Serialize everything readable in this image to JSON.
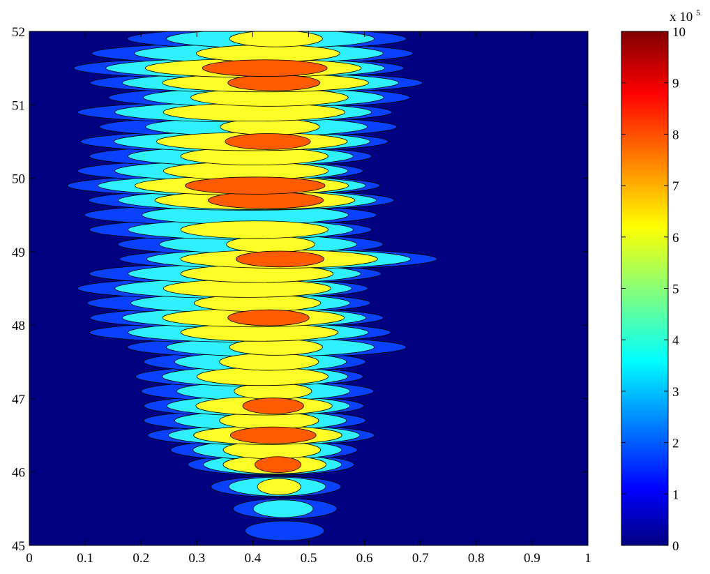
{
  "chart_data": {
    "type": "heatmap",
    "style": "filled-contour",
    "title": "",
    "xlabel": "",
    "ylabel": "",
    "xlim": [
      0,
      1
    ],
    "ylim": [
      45,
      52
    ],
    "x_ticks": [
      0,
      0.1,
      0.2,
      0.3,
      0.4,
      0.5,
      0.6,
      0.7,
      0.8,
      0.9,
      1
    ],
    "x_tick_labels": [
      "0",
      "0.1",
      "0.2",
      "0.3",
      "0.4",
      "0.5",
      "0.6",
      "0.7",
      "0.8",
      "0.9",
      "1"
    ],
    "y_ticks": [
      45,
      46,
      47,
      48,
      49,
      50,
      51,
      52
    ],
    "y_tick_labels": [
      "45",
      "46",
      "47",
      "48",
      "49",
      "50",
      "51",
      "52"
    ],
    "colorbar": {
      "colormap": "jet",
      "range": [
        0,
        1000000
      ],
      "multiplier_label": "x 10",
      "multiplier_exponent": "5",
      "ticks": [
        0,
        1,
        2,
        3,
        4,
        5,
        6,
        7,
        8,
        9,
        10
      ],
      "tick_labels": [
        "0",
        "1",
        "2",
        "3",
        "4",
        "5",
        "6",
        "7",
        "8",
        "9",
        "10"
      ]
    },
    "contour_levels": [
      0,
      200000,
      400000,
      600000,
      800000
    ],
    "level_colors": [
      "#000080",
      "#0a40ff",
      "#2ff0ff",
      "#ffff28",
      "#ff5a00"
    ],
    "approx_structure": {
      "x_center": 0.45,
      "y_rows": [
        45.2,
        45.5,
        45.8,
        46.1,
        46.3,
        46.5,
        46.7,
        46.9,
        47.1,
        47.3,
        47.5,
        47.7,
        47.9,
        48.1,
        48.3,
        48.5,
        48.7,
        48.9,
        49.1,
        49.3,
        49.5,
        49.7,
        49.9,
        50.1,
        50.3,
        50.5,
        50.7,
        50.9,
        51.1,
        51.3,
        51.5,
        51.7,
        51.9
      ],
      "peak_values": [
        400000,
        500000,
        650000,
        850000,
        750000,
        900000,
        700000,
        850000,
        650000,
        800000,
        700000,
        650000,
        750000,
        850000,
        700000,
        800000,
        750000,
        850000,
        650000,
        750000,
        600000,
        900000,
        950000,
        800000,
        750000,
        850000,
        650000,
        800000,
        750000,
        850000,
        900000,
        700000,
        650000
      ],
      "left_extent": [
        0.36,
        0.34,
        0.3,
        0.26,
        0.22,
        0.18,
        0.16,
        0.17,
        0.15,
        0.15,
        0.16,
        0.12,
        0.05,
        0.06,
        0.04,
        0.03,
        0.05,
        0.12,
        0.1,
        0.05,
        0.02,
        0.06,
        0.02,
        0.03,
        0.05,
        0.04,
        0.06,
        0.03,
        0.09,
        0.06,
        0.03,
        0.05,
        0.12
      ],
      "right_extent": [
        0.56,
        0.58,
        0.58,
        0.6,
        0.61,
        0.64,
        0.63,
        0.62,
        0.65,
        0.62,
        0.63,
        0.72,
        0.68,
        0.66,
        0.64,
        0.63,
        0.66,
        0.77,
        0.67,
        0.64,
        0.66,
        0.68,
        0.65,
        0.62,
        0.64,
        0.67,
        0.7,
        0.68,
        0.72,
        0.74,
        0.7,
        0.73,
        0.72
      ]
    }
  }
}
